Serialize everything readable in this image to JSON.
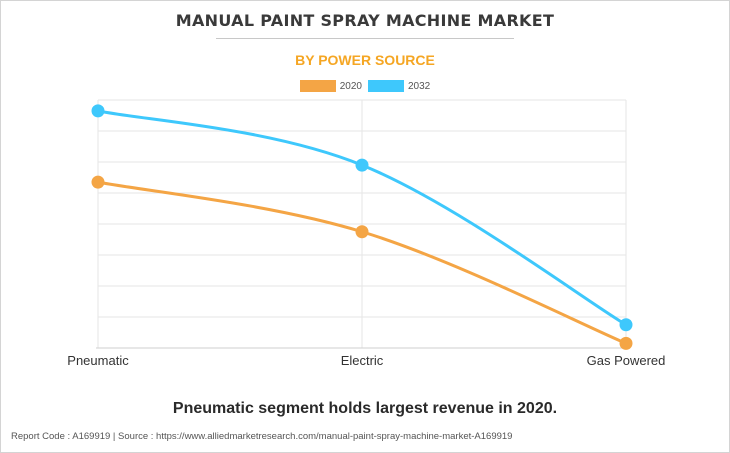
{
  "header": {
    "title": "MANUAL PAINT SPRAY MACHINE MARKET",
    "subtitle": "BY POWER SOURCE"
  },
  "legend": {
    "items": [
      {
        "label": "2020",
        "color": "#f4a545"
      },
      {
        "label": "2032",
        "color": "#3ec8fc"
      }
    ]
  },
  "chart_data": {
    "type": "line",
    "title": "MANUAL PAINT SPRAY MACHINE MARKET",
    "subtitle": "BY POWER SOURCE",
    "categories": [
      "Pneumatic",
      "Electric",
      "Gas Powered"
    ],
    "series": [
      {
        "name": "2020",
        "color": "#f4a545",
        "values": [
          53.5,
          37.5,
          1.5
        ]
      },
      {
        "name": "2032",
        "color": "#3ec8fc",
        "values": [
          76.5,
          59,
          7.5
        ]
      }
    ],
    "ylim": [
      0,
      80
    ],
    "y_gridlines": 8,
    "show_y_tick_labels": false,
    "xlabel": "",
    "ylabel": "",
    "grid": true,
    "legend_position": "top-center"
  },
  "caption": "Pneumatic segment holds largest revenue in 2020.",
  "footer": {
    "text": "Report Code : A169919  |  Source : https://www.alliedmarketresearch.com/manual-paint-spray-machine-market-A169919"
  }
}
